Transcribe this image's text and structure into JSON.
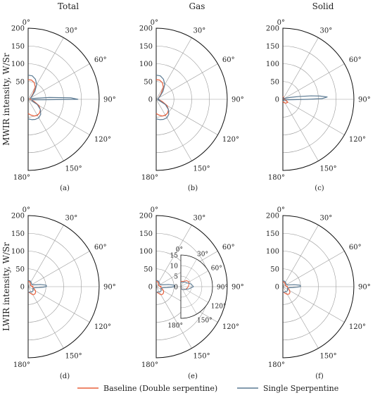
{
  "figure": {
    "column_titles": [
      "Total",
      "Gas",
      "Solid"
    ],
    "row_ylabels": [
      "MWIR intensity, W/Sr",
      "LWIR intensity, W/Sr"
    ],
    "legend": [
      {
        "name": "Baseline (Double serpentine)",
        "color": "#e8603c"
      },
      {
        "name": "Single Sperpentine",
        "color": "#5b7a93"
      }
    ]
  },
  "chart_data": [
    {
      "type": "polar-line",
      "panel_label": "(a)",
      "column_title": "Total",
      "ylabel": "MWIR intensity, W/Sr",
      "rlim": [
        0,
        200
      ],
      "r_ticks": [
        "0",
        "50",
        "100",
        "150",
        "200"
      ],
      "angle_ticks": [
        "0°",
        "30°",
        "60°",
        "90°",
        "120°",
        "150°",
        "180°"
      ],
      "angles_deg": [
        0,
        10,
        20,
        30,
        40,
        50,
        60,
        70,
        80,
        85,
        88,
        90,
        92,
        95,
        100,
        110,
        120,
        130,
        140,
        150,
        160,
        170,
        180
      ],
      "series": [
        {
          "name": "Baseline (Double serpentine)",
          "color": "#e8603c",
          "values": [
            55,
            55,
            50,
            40,
            22,
            12,
            8,
            6,
            5,
            5,
            5,
            5,
            5,
            6,
            9,
            18,
            35,
            45,
            50,
            52,
            50,
            45,
            40
          ]
        },
        {
          "name": "Single Sperpentine",
          "color": "#5b7a93",
          "values": [
            68,
            67,
            60,
            48,
            30,
            15,
            8,
            8,
            14,
            60,
            120,
            140,
            40,
            15,
            10,
            12,
            30,
            45,
            55,
            60,
            60,
            58,
            55
          ]
        }
      ]
    },
    {
      "type": "polar-line",
      "panel_label": "(b)",
      "column_title": "Gas",
      "rlim": [
        0,
        200
      ],
      "r_ticks": [
        "0",
        "50",
        "100",
        "150",
        "200"
      ],
      "angle_ticks": [
        "0°",
        "30°",
        "60°",
        "90°",
        "120°",
        "150°",
        "180°"
      ],
      "angles_deg": [
        0,
        10,
        20,
        30,
        40,
        50,
        60,
        70,
        80,
        85,
        88,
        90,
        92,
        95,
        100,
        110,
        120,
        130,
        140,
        150,
        160,
        170,
        180
      ],
      "series": [
        {
          "name": "Baseline (Double serpentine)",
          "color": "#e8603c",
          "values": [
            55,
            55,
            50,
            40,
            22,
            12,
            8,
            6,
            5,
            5,
            5,
            5,
            5,
            6,
            9,
            18,
            35,
            45,
            50,
            52,
            50,
            45,
            40
          ]
        },
        {
          "name": "Single Sperpentine",
          "color": "#5b7a93",
          "values": [
            68,
            67,
            60,
            48,
            30,
            15,
            8,
            6,
            5,
            5,
            6,
            8,
            6,
            5,
            5,
            10,
            30,
            45,
            55,
            60,
            60,
            58,
            55
          ]
        }
      ]
    },
    {
      "type": "polar-line",
      "panel_label": "(c)",
      "column_title": "Solid",
      "rlim": [
        0,
        200
      ],
      "r_ticks": [
        "0",
        "50",
        "100",
        "150",
        "200"
      ],
      "angle_ticks": [
        "0°",
        "30°",
        "60°",
        "90°",
        "120°",
        "150°",
        "180°"
      ],
      "angles_deg": [
        0,
        20,
        40,
        60,
        70,
        75,
        80,
        83,
        85,
        87,
        89,
        90,
        92,
        95,
        100,
        110,
        120,
        140,
        160,
        180
      ],
      "series": [
        {
          "name": "Baseline (Double serpentine)",
          "color": "#e8603c",
          "values": [
            8,
            6,
            4,
            3,
            3,
            3,
            4,
            5,
            6,
            6,
            5,
            5,
            4,
            4,
            5,
            10,
            16,
            14,
            10,
            6
          ]
        },
        {
          "name": "Single Sperpentine",
          "color": "#5b7a93",
          "values": [
            4,
            4,
            4,
            5,
            10,
            20,
            45,
            80,
            105,
            125,
            110,
            70,
            30,
            15,
            8,
            5,
            4,
            4,
            4,
            4
          ]
        }
      ]
    },
    {
      "type": "polar-line",
      "panel_label": "(d)",
      "column_title": "Total",
      "ylabel": "LWIR intensity, W/Sr",
      "rlim": [
        0,
        200
      ],
      "r_ticks": [
        "0",
        "50",
        "100",
        "150",
        "200"
      ],
      "angle_ticks": [
        "0°",
        "30°",
        "60°",
        "90°",
        "120°",
        "150°",
        "180°"
      ],
      "angles_deg": [
        0,
        20,
        40,
        60,
        70,
        80,
        85,
        88,
        90,
        92,
        95,
        100,
        110,
        120,
        130,
        140,
        150,
        160,
        180
      ],
      "series": [
        {
          "name": "Baseline (Double serpentine)",
          "color": "#e8603c",
          "values": [
            15,
            14,
            10,
            8,
            8,
            10,
            13,
            14,
            13,
            12,
            12,
            14,
            18,
            24,
            27,
            28,
            26,
            20,
            14
          ]
        },
        {
          "name": "Single Sperpentine",
          "color": "#5b7a93",
          "values": [
            18,
            17,
            14,
            12,
            15,
            35,
            50,
            52,
            50,
            42,
            30,
            18,
            14,
            16,
            18,
            18,
            17,
            16,
            15
          ]
        }
      ]
    },
    {
      "type": "polar-line",
      "panel_label": "(e)",
      "column_title": "Gas",
      "rlim": [
        0,
        200
      ],
      "r_ticks": [
        "0",
        "50",
        "100",
        "150",
        "200"
      ],
      "angle_ticks": [
        "0°",
        "30°",
        "60°",
        "90°",
        "120°",
        "150°",
        "180°"
      ],
      "angles_deg": [
        0,
        20,
        40,
        60,
        70,
        80,
        85,
        88,
        90,
        92,
        95,
        100,
        110,
        120,
        130,
        140,
        150,
        160,
        180
      ],
      "series": [
        {
          "name": "Baseline (Double serpentine)",
          "color": "#e8603c",
          "values": [
            15,
            14,
            10,
            8,
            8,
            10,
            13,
            14,
            13,
            12,
            12,
            14,
            18,
            24,
            27,
            28,
            26,
            20,
            14
          ]
        },
        {
          "name": "Single Sperpentine",
          "color": "#5b7a93",
          "values": [
            18,
            17,
            14,
            12,
            15,
            35,
            50,
            52,
            50,
            42,
            30,
            18,
            14,
            16,
            18,
            18,
            17,
            16,
            15
          ]
        }
      ],
      "inset": {
        "rlim": [
          0,
          15
        ],
        "r_ticks": [
          "0",
          "5",
          "10",
          "15"
        ],
        "angle_ticks": [
          "0°",
          "30°",
          "60°",
          "90°",
          "120°",
          "150°",
          "180°"
        ],
        "angles_deg": [
          0,
          30,
          45,
          60,
          75,
          90,
          105,
          120,
          135,
          150,
          180
        ],
        "series": [
          {
            "name": "Baseline (Double serpentine)",
            "color": "#e8603c",
            "values": [
              2.5,
              3,
              4,
              4.5,
              4,
              3.5,
              3,
              2.5,
              2,
              1.5,
              1
            ]
          },
          {
            "name": "Single Sperpentine",
            "color": "#5b7a93",
            "values": [
              2,
              2.5,
              3,
              3.5,
              5,
              6,
              4,
              2.5,
              2,
              1.5,
              1
            ]
          }
        ]
      }
    },
    {
      "type": "polar-line",
      "panel_label": "(f)",
      "column_title": "Solid",
      "rlim": [
        0,
        200
      ],
      "r_ticks": [
        "0",
        "50",
        "100",
        "150",
        "200"
      ],
      "angle_ticks": [
        "0°",
        "30°",
        "60°",
        "90°",
        "120°",
        "150°",
        "180°"
      ],
      "angles_deg": [
        0,
        20,
        40,
        60,
        70,
        80,
        85,
        88,
        90,
        92,
        95,
        100,
        110,
        120,
        130,
        140,
        150,
        160,
        180
      ],
      "series": [
        {
          "name": "Baseline (Double serpentine)",
          "color": "#e8603c",
          "values": [
            14,
            13,
            10,
            8,
            8,
            10,
            12,
            13,
            12,
            12,
            12,
            13,
            17,
            22,
            26,
            27,
            25,
            20,
            14
          ]
        },
        {
          "name": "Single Sperpentine",
          "color": "#5b7a93",
          "values": [
            17,
            16,
            13,
            12,
            14,
            32,
            48,
            50,
            48,
            40,
            28,
            17,
            14,
            15,
            17,
            17,
            16,
            16,
            15
          ]
        }
      ]
    }
  ]
}
